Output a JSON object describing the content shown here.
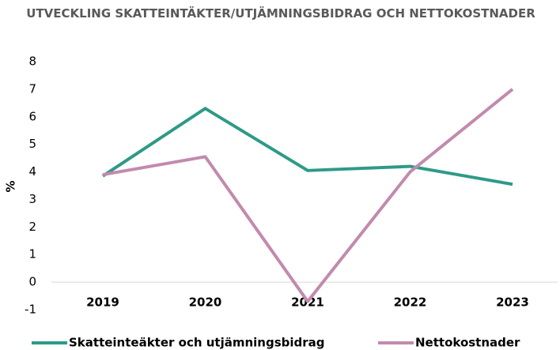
{
  "chart_data": {
    "type": "line",
    "title": "UTVECKLING SKATTEINTÄKTER/UTJÄMNINGSBIDRAG OCH NETTOKOSTNADER",
    "y_label": "%",
    "categories": [
      "2019",
      "2020",
      "2021",
      "2022",
      "2023"
    ],
    "series": [
      {
        "name": "Skatteinteäkter och utjämningsbidrag",
        "color": "#2e9a87",
        "values": [
          3.85,
          6.3,
          4.05,
          4.2,
          3.55
        ]
      },
      {
        "name": "Nettokostnader",
        "color": "#c28aae",
        "values": [
          3.9,
          4.55,
          -0.7,
          4.0,
          7.0
        ]
      }
    ],
    "ylim": [
      -1,
      8
    ],
    "yticks": [
      -1,
      0,
      1,
      2,
      3,
      4,
      5,
      6,
      7,
      8
    ],
    "grid": false,
    "legend": "bottom"
  }
}
